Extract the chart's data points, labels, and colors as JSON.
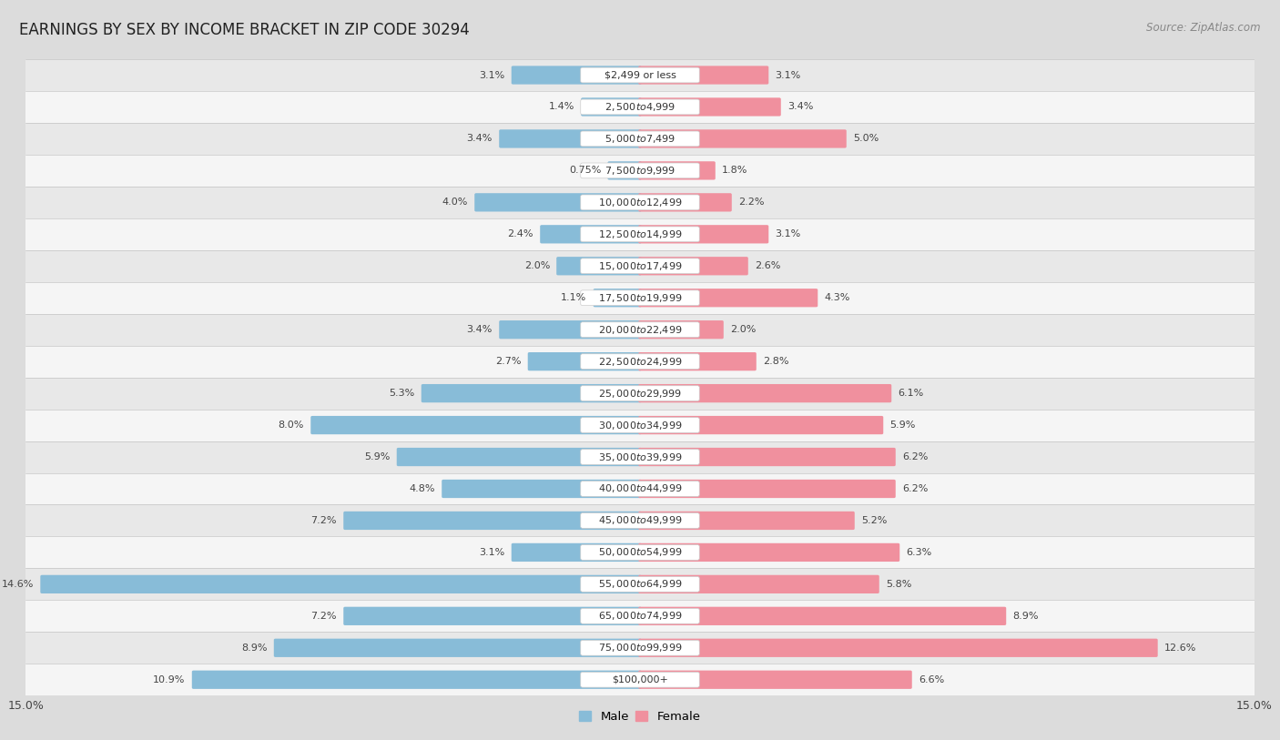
{
  "title": "EARNINGS BY SEX BY INCOME BRACKET IN ZIP CODE 30294",
  "source": "Source: ZipAtlas.com",
  "categories": [
    "$2,499 or less",
    "$2,500 to $4,999",
    "$5,000 to $7,499",
    "$7,500 to $9,999",
    "$10,000 to $12,499",
    "$12,500 to $14,999",
    "$15,000 to $17,499",
    "$17,500 to $19,999",
    "$20,000 to $22,499",
    "$22,500 to $24,999",
    "$25,000 to $29,999",
    "$30,000 to $34,999",
    "$35,000 to $39,999",
    "$40,000 to $44,999",
    "$45,000 to $49,999",
    "$50,000 to $54,999",
    "$55,000 to $64,999",
    "$65,000 to $74,999",
    "$75,000 to $99,999",
    "$100,000+"
  ],
  "male_values": [
    3.1,
    1.4,
    3.4,
    0.75,
    4.0,
    2.4,
    2.0,
    1.1,
    3.4,
    2.7,
    5.3,
    8.0,
    5.9,
    4.8,
    7.2,
    3.1,
    14.6,
    7.2,
    8.9,
    10.9
  ],
  "female_values": [
    3.1,
    3.4,
    5.0,
    1.8,
    2.2,
    3.1,
    2.6,
    4.3,
    2.0,
    2.8,
    6.1,
    5.9,
    6.2,
    6.2,
    5.2,
    6.3,
    5.8,
    8.9,
    12.6,
    6.6
  ],
  "male_color": "#88bcd8",
  "female_color": "#f0909e",
  "male_label": "Male",
  "female_label": "Female",
  "xlim": 15.0,
  "row_colors": [
    "#f5f5f5",
    "#e8e8e8"
  ],
  "background_color": "#dcdcdc",
  "title_fontsize": 12,
  "tick_fontsize": 9,
  "bar_height": 0.5,
  "label_fontsize": 8,
  "cat_fontsize": 8
}
